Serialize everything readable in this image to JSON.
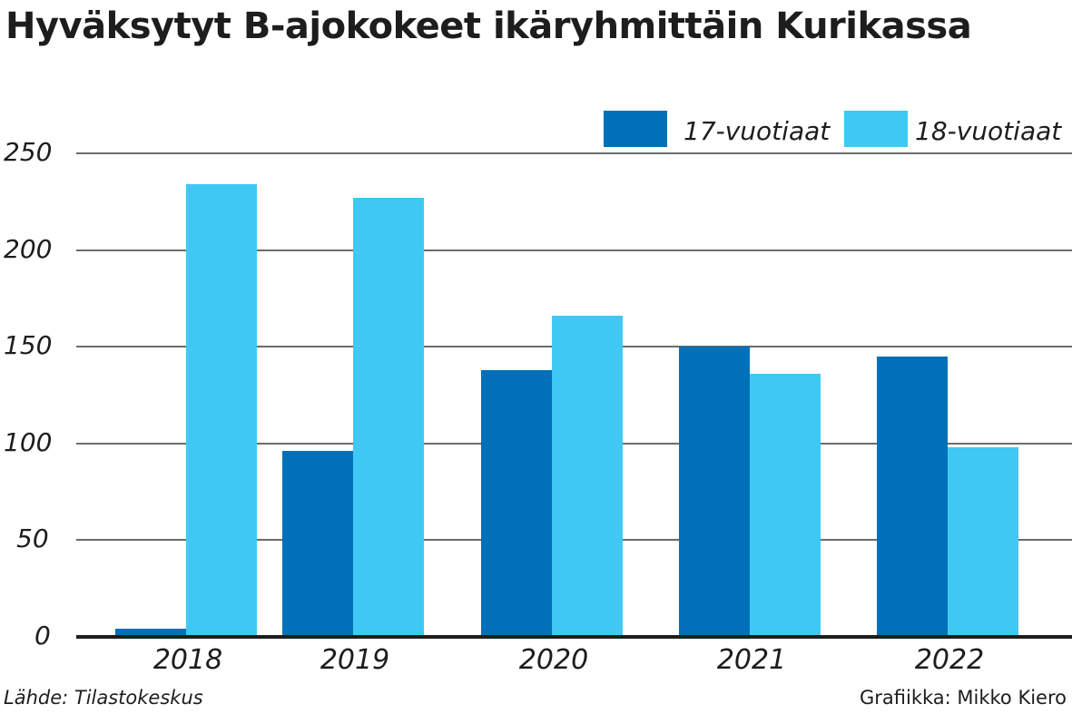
{
  "title": "Hyväksytyt B-ajokokeet ikäryhmittäin Kurikassa",
  "legend": [
    {
      "label": "17-vuotiaat",
      "color": "#0070b8"
    },
    {
      "label": "18-vuotiaat",
      "color": "#40c8f4"
    }
  ],
  "y_ticks": [
    "0",
    "50",
    "100",
    "150",
    "200",
    "250"
  ],
  "footer": {
    "source": "Lähde: Tilastokeskus",
    "credit": "Grafiikka: Mikko Kiero"
  },
  "chart_data": {
    "type": "bar",
    "title": "Hyväksytyt B-ajokokeet ikäryhmittäin Kurikassa",
    "xlabel": "",
    "ylabel": "",
    "categories": [
      "2018",
      "2019",
      "2020",
      "2021",
      "2022"
    ],
    "series": [
      {
        "name": "17-vuotiaat",
        "color": "#0070b8",
        "values": [
          4,
          96,
          138,
          150,
          145
        ]
      },
      {
        "name": "18-vuotiaat",
        "color": "#40c8f4",
        "values": [
          234,
          227,
          166,
          136,
          98
        ]
      }
    ],
    "ylim": [
      0,
      250
    ],
    "yticks": [
      0,
      50,
      100,
      150,
      200,
      250
    ],
    "grid": true,
    "legend_position": "top-right",
    "source": "Lähde: Tilastokeskus",
    "credit": "Grafiikka: Mikko Kiero"
  }
}
